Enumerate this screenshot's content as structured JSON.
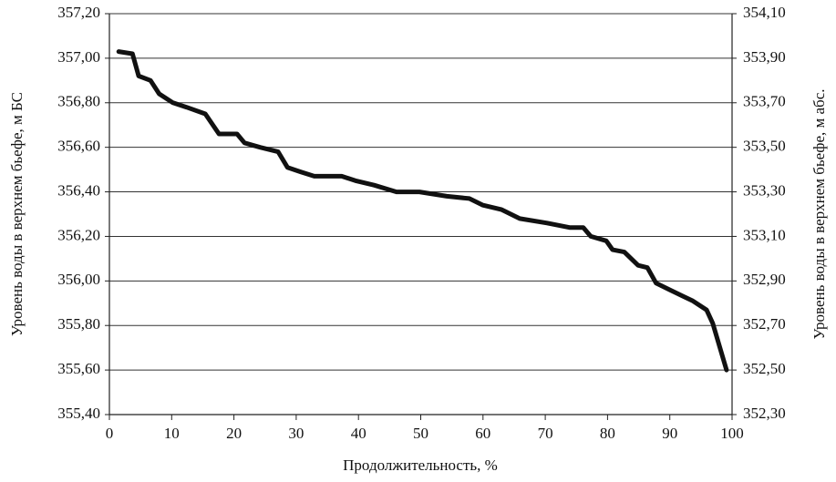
{
  "chart_data": {
    "type": "line",
    "y_label": "Уровень воды в верхнем бьефе, м БС",
    "y2_label": "Уровень воды в верхнем бьефе, м абс.",
    "x_label": "Продолжительность, %",
    "color": "#111111",
    "grid": true,
    "x": [
      1.5,
      3.7,
      4.7,
      6.6,
      8,
      10.2,
      12.4,
      15.4,
      17.6,
      20.5,
      21.7,
      24.2,
      27.1,
      28.6,
      30.7,
      32.9,
      37.3,
      39.5,
      42.5,
      46.1,
      49.8,
      54.2,
      57.8,
      60,
      63,
      65.9,
      70.3,
      73.9,
      76.1,
      77.3,
      79.8,
      80.8,
      82.7,
      84.9,
      86.4,
      87.8,
      90,
      92.2,
      93.7,
      95.9,
      96.9,
      99.1
    ],
    "values": [
      357.03,
      357.02,
      356.92,
      356.9,
      356.84,
      356.8,
      356.78,
      356.75,
      356.66,
      356.66,
      356.62,
      356.6,
      356.58,
      356.51,
      356.49,
      356.47,
      356.47,
      356.45,
      356.43,
      356.4,
      356.4,
      356.38,
      356.37,
      356.34,
      356.32,
      356.28,
      356.26,
      356.24,
      356.24,
      356.2,
      356.18,
      356.14,
      356.13,
      356.07,
      356.06,
      355.99,
      355.96,
      355.93,
      355.91,
      355.87,
      355.81,
      355.6
    ],
    "xlim": [
      0,
      100
    ],
    "xticks": [
      0,
      10,
      20,
      30,
      40,
      50,
      60,
      70,
      80,
      90,
      100
    ],
    "ylim": [
      355.4,
      357.2
    ],
    "yticks": [
      {
        "value": 355.4,
        "label": "355,40"
      },
      {
        "value": 355.6,
        "label": "355,60"
      },
      {
        "value": 355.8,
        "label": "355,80"
      },
      {
        "value": 356.0,
        "label": "356,00"
      },
      {
        "value": 356.2,
        "label": "356,20"
      },
      {
        "value": 356.4,
        "label": "356,40"
      },
      {
        "value": 356.6,
        "label": "356,60"
      },
      {
        "value": 356.8,
        "label": "356,80"
      },
      {
        "value": 357.0,
        "label": "357,00"
      },
      {
        "value": 357.2,
        "label": "357,20"
      }
    ],
    "y2lim": [
      352.3,
      354.1
    ],
    "y2ticks": [
      {
        "value": 352.3,
        "label": "352,30"
      },
      {
        "value": 352.5,
        "label": "352,50"
      },
      {
        "value": 352.7,
        "label": "352,70"
      },
      {
        "value": 352.9,
        "label": "352,90"
      },
      {
        "value": 353.1,
        "label": "353,10"
      },
      {
        "value": 353.3,
        "label": "353,30"
      },
      {
        "value": 353.5,
        "label": "353,50"
      },
      {
        "value": 353.7,
        "label": "353,70"
      },
      {
        "value": 353.9,
        "label": "353,90"
      },
      {
        "value": 354.1,
        "label": "354,10"
      }
    ]
  }
}
